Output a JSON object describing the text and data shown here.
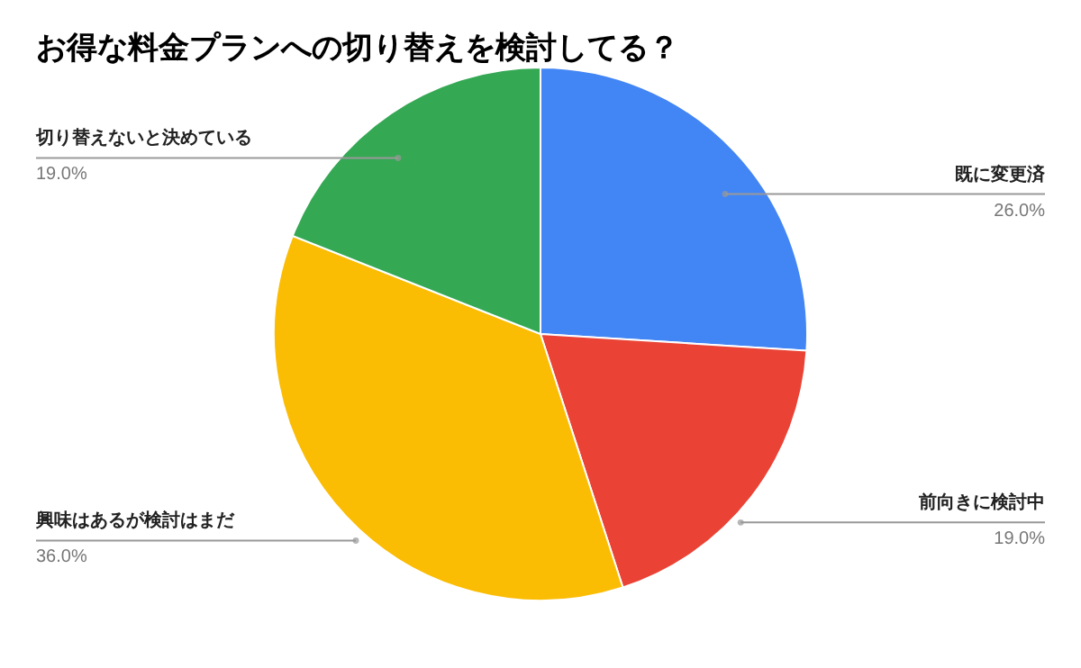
{
  "chart_data": {
    "type": "pie",
    "title": "お得な料金プランへの切り替えを検討してる？",
    "categories": [
      "既に変更済",
      "前向きに検討中",
      "興味はあるが検討はまだ",
      "切り替えないと決めている"
    ],
    "values": [
      26,
      19,
      36,
      19
    ],
    "value_labels": [
      "26.0%",
      "19.0%",
      "36.0%",
      "19.0%"
    ],
    "colors": [
      "#4285f4",
      "#ea4335",
      "#fbbc04",
      "#34a853"
    ]
  }
}
